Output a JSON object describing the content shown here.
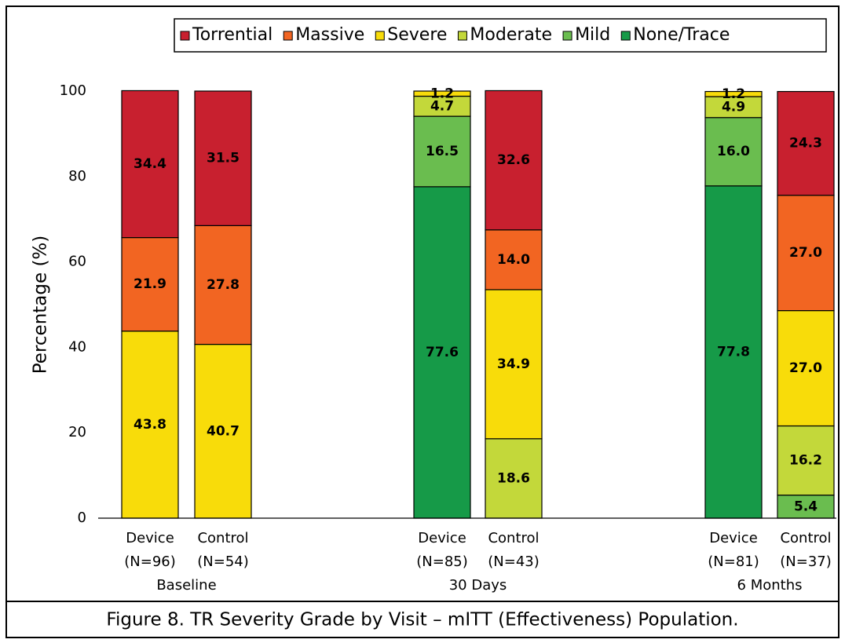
{
  "chart_data": {
    "type": "stacked_bar",
    "caption": "Figure 8. TR Severity Grade by Visit – mITT (Effectiveness) Population.",
    "ylabel": "Percentage (%)",
    "categories": [
      "Device",
      "Control",
      "Device",
      "Control",
      "Device",
      "Control"
    ],
    "category_sublabels": [
      "(N=96)",
      "(N=54)",
      "(N=85)",
      "(N=43)",
      "(N=81)",
      "(N=37)"
    ],
    "groups": [
      "Baseline",
      "30 Days",
      "6 Months"
    ],
    "ylim": [
      0,
      100
    ],
    "yticks": [
      0,
      20,
      40,
      60,
      80,
      100
    ],
    "grid": false,
    "legend": "top-right",
    "series": [
      {
        "name": "None/Trace",
        "color": "#169a48",
        "values": [
          null,
          null,
          77.6,
          null,
          77.8,
          null
        ],
        "value_labels": [
          null,
          null,
          "77.6",
          null,
          "77.8",
          null
        ]
      },
      {
        "name": "Mild",
        "color": "#6abd4f",
        "values": [
          null,
          null,
          16.5,
          null,
          16.0,
          5.4
        ],
        "value_labels": [
          null,
          null,
          "16.5",
          null,
          "16.0",
          "5.4"
        ]
      },
      {
        "name": "Moderate",
        "color": "#c3d83a",
        "values": [
          null,
          null,
          4.7,
          18.6,
          4.9,
          16.2
        ],
        "value_labels": [
          null,
          null,
          "4.7",
          "18.6",
          "4.9",
          "16.2"
        ]
      },
      {
        "name": "Severe",
        "color": "#f8dc0a",
        "values": [
          43.8,
          40.7,
          1.2,
          34.9,
          1.2,
          27.0
        ],
        "value_labels": [
          "43.8",
          "40.7",
          "1.2",
          "34.9",
          "1.2",
          "27.0"
        ]
      },
      {
        "name": "Massive",
        "color": "#f26522",
        "values": [
          21.9,
          27.8,
          null,
          14.0,
          null,
          27.0
        ],
        "value_labels": [
          "21.9",
          "27.8",
          null,
          "14.0",
          null,
          "27.0"
        ]
      },
      {
        "name": "Torrential",
        "color": "#c8202f",
        "values": [
          34.4,
          31.5,
          null,
          32.6,
          null,
          24.3
        ],
        "value_labels": [
          "34.4",
          "31.5",
          null,
          "32.6",
          null,
          "24.3"
        ]
      }
    ]
  }
}
